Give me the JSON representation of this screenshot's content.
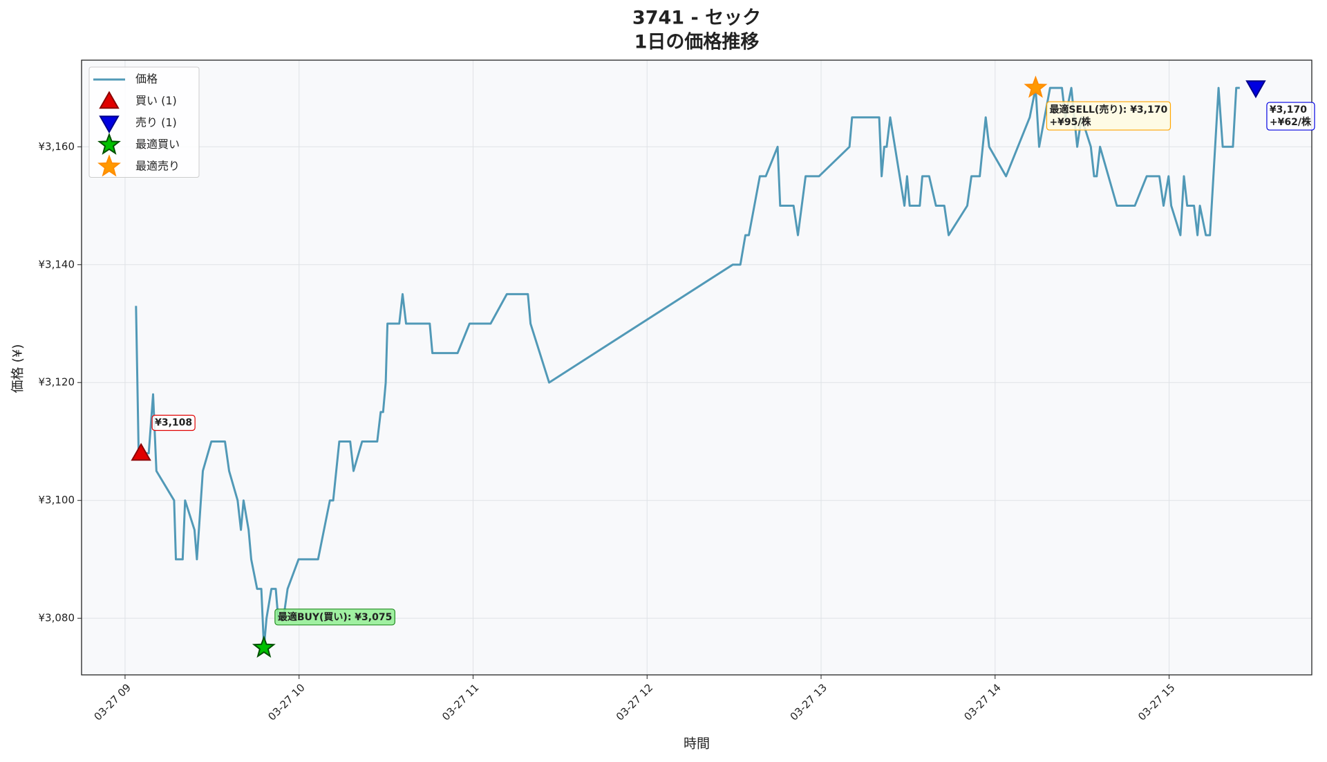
{
  "chart_data": {
    "type": "line",
    "title": "3741 - セック",
    "subtitle": "1日の価格推移",
    "xlabel": "時間",
    "ylabel": "価格 (¥)",
    "xlim": [
      8.75,
      15.82
    ],
    "ylim": [
      3070.4,
      3174.7
    ],
    "xticks": [
      {
        "value": 9,
        "label": "03-27 09"
      },
      {
        "value": 10,
        "label": "03-27 10"
      },
      {
        "value": 11,
        "label": "03-27 11"
      },
      {
        "value": 12,
        "label": "03-27 12"
      },
      {
        "value": 13,
        "label": "03-27 13"
      },
      {
        "value": 14,
        "label": "03-27 14"
      },
      {
        "value": 15,
        "label": "03-27 15"
      }
    ],
    "yticks": [
      {
        "value": 3080,
        "label": "¥3,080"
      },
      {
        "value": 3100,
        "label": "¥3,100"
      },
      {
        "value": 3120,
        "label": "¥3,120"
      },
      {
        "value": 3140,
        "label": "¥3,140"
      },
      {
        "value": 3160,
        "label": "¥3,160"
      }
    ],
    "grid": true,
    "legend": "upper left",
    "x": [
      9.063,
      9.078,
      9.136,
      9.161,
      9.18,
      9.282,
      9.292,
      9.331,
      9.345,
      9.399,
      9.413,
      9.447,
      9.496,
      9.574,
      9.598,
      9.647,
      9.666,
      9.681,
      9.71,
      9.725,
      9.759,
      9.783,
      9.798,
      9.813,
      9.841,
      9.866,
      9.88,
      9.91,
      9.934,
      9.997,
      10.109,
      10.177,
      10.196,
      10.231,
      10.294,
      10.313,
      10.362,
      10.449,
      10.469,
      10.483,
      10.498,
      10.508,
      10.576,
      10.595,
      10.615,
      10.751,
      10.766,
      10.911,
      10.98,
      11.101,
      11.194,
      11.315,
      11.33,
      11.437,
      12.492,
      12.536,
      12.565,
      12.585,
      12.648,
      12.682,
      12.75,
      12.765,
      12.842,
      12.867,
      12.911,
      12.988,
      13.163,
      13.178,
      13.334,
      13.348,
      13.363,
      13.377,
      13.397,
      13.479,
      13.494,
      13.509,
      13.567,
      13.582,
      13.621,
      13.66,
      13.708,
      13.733,
      13.84,
      13.864,
      13.912,
      13.946,
      13.966,
      14.063,
      14.199,
      14.233,
      14.253,
      14.316,
      14.384,
      14.404,
      14.438,
      14.472,
      14.496,
      14.55,
      14.569,
      14.584,
      14.603,
      14.7,
      14.803,
      14.871,
      14.944,
      14.968,
      14.997,
      15.012,
      15.065,
      15.085,
      15.104,
      15.143,
      15.163,
      15.177,
      15.211,
      15.235,
      15.284,
      15.308,
      15.367,
      15.386,
      15.406
    ],
    "series": [
      {
        "name": "価格",
        "color": "#5199b7",
        "values": [
          3133,
          3108,
          3108,
          3118,
          3105,
          3100,
          3090,
          3090,
          3100,
          3095,
          3090,
          3105,
          3110,
          3110,
          3105,
          3100,
          3095,
          3100,
          3095,
          3090,
          3085,
          3085,
          3075,
          3080,
          3085,
          3085,
          3080,
          3080,
          3085,
          3090,
          3090,
          3100,
          3100,
          3110,
          3110,
          3105,
          3110,
          3110,
          3115,
          3115,
          3120,
          3130,
          3130,
          3135,
          3130,
          3130,
          3125,
          3125,
          3130,
          3130,
          3135,
          3135,
          3130,
          3120,
          3140,
          3140,
          3145,
          3145,
          3155,
          3155,
          3160,
          3150,
          3150,
          3145,
          3155,
          3155,
          3160,
          3165,
          3165,
          3155,
          3160,
          3160,
          3165,
          3150,
          3155,
          3150,
          3150,
          3155,
          3155,
          3150,
          3150,
          3145,
          3150,
          3155,
          3155,
          3165,
          3160,
          3155,
          3165,
          3170,
          3160,
          3170,
          3170,
          3165,
          3170,
          3160,
          3165,
          3160,
          3155,
          3155,
          3160,
          3150,
          3150,
          3155,
          3155,
          3150,
          3155,
          3150,
          3145,
          3155,
          3150,
          3150,
          3145,
          3150,
          3145,
          3145,
          3170,
          3160,
          3160,
          3170,
          3170
        ]
      },
      {
        "name": "買い (1)",
        "marker": "triangle-up",
        "color": "#e00000",
        "x": [
          9.092
        ],
        "values": [
          3108
        ],
        "value_labels": [
          "¥3,108"
        ]
      },
      {
        "name": "売り (1)",
        "marker": "triangle-down",
        "color": "#0000e0",
        "x": [
          15.498
        ],
        "values": [
          3170
        ],
        "value_labels": [
          "¥3,170"
        ],
        "annotations": [
          "+¥62/株"
        ]
      },
      {
        "name": "最適買い",
        "marker": "star",
        "color": "#00c000",
        "x": [
          9.798
        ],
        "values": [
          3075
        ],
        "value_labels": [
          "最適BUY(買い): ¥3,075"
        ]
      },
      {
        "name": "最適売り",
        "marker": "star",
        "color": "#ff9900",
        "x": [
          14.233
        ],
        "values": [
          3170
        ],
        "value_labels": [
          "最適SELL(売り): ¥3,170"
        ],
        "annotations": [
          "+¥95/株"
        ]
      }
    ]
  }
}
